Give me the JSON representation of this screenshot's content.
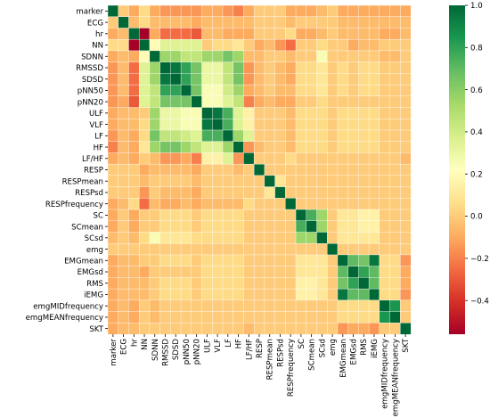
{
  "chart_data": {
    "type": "heatmap",
    "title": "",
    "xlabel": "",
    "ylabel": "",
    "variables": [
      "marker",
      "ECG",
      "hr",
      "NN",
      "SDNN",
      "RMSSD",
      "SDSD",
      "pNN50",
      "pNN20",
      "ULF",
      "VLF",
      "LF",
      "HF",
      "LF/HF",
      "RESP",
      "RESPmean",
      "RESPsd",
      "RESPfrequency",
      "SC",
      "SCmean",
      "SCsd",
      "emg",
      "EMGmean",
      "EMGsd",
      "RMS",
      "iEMG",
      "emgMIDfrequency",
      "emgMEANfrequency",
      "SKT"
    ],
    "colorbar": {
      "min": -0.56,
      "max": 1.0,
      "colormap": "RdYlGn",
      "ticks": [
        "1.0",
        "0.8",
        "0.6",
        "0.4",
        "0.2",
        "0.0",
        "−0.2",
        "−0.4"
      ]
    },
    "matrix_rows": [
      "1.00 0.00 -0.10 0.05 -0.10 -0.15 -0.15 -0.15 -0.15 -0.10 -0.10 -0.15 -0.20 -0.10 0.00 0.00 0.00 -0.10 -0.10 -0.10 -0.05 0.00 -0.10 -0.10 -0.10 -0.10 -0.10 -0.10 -0.10",
      "0.00 1.00 -0.05 0.05 -0.05 -0.05 -0.05 -0.05 -0.10 -0.05 -0.05 -0.05 -0.05 -0.05 0.00 0.00 0.00 -0.05 0.00 0.00 0.00 0.00 -0.05 -0.05 -0.05 -0.05 -0.05 -0.05 -0.05",
      "-0.10 -0.05 1.00 -0.56 -0.10 -0.25 -0.25 -0.25 -0.30 -0.05 -0.05 -0.10 -0.10 -0.10 0.00 0.00 0.00 0.05 -0.10 -0.10 -0.05 0.00 -0.05 -0.05 -0.05 -0.05 -0.10 -0.10 -0.05",
      "0.05 0.05 -0.56 1.00 0.20 0.35 0.35 0.35 0.35 0.00 0.05 0.05 0.10 0.00 -0.10 -0.05 -0.15 -0.25 0.00 0.00 0.05 0.00 0.00 -0.10 -0.05 -0.05 0.00 0.00 0.00",
      "-0.10 -0.05 -0.10 0.20 1.00 0.55 0.55 0.45 0.45 0.55 0.55 0.65 0.55 -0.05 -0.05 0.00 0.00 -0.05 0.00 0.00 0.25 0.00 0.00 0.00 0.00 0.00 -0.05 -0.05 0.00",
      "-0.15 -0.05 -0.25 0.35 0.55 1.00 0.95 0.80 0.65 0.30 0.30 0.45 0.65 -0.15 -0.05 0.00 -0.05 -0.10 0.05 0.05 0.10 0.00 0.05 0.00 0.05 0.05 0.00 0.00 0.00",
      "-0.15 -0.05 -0.25 0.35 0.55 0.95 1.00 0.80 0.65 0.30 0.30 0.45 0.65 -0.15 -0.05 0.00 -0.05 -0.10 0.05 0.05 0.10 0.00 0.05 0.00 0.05 0.05 0.00 0.00 0.00",
      "-0.15 -0.05 -0.25 0.35 0.45 0.80 0.80 1.00 0.65 0.25 0.25 0.40 0.55 -0.10 -0.05 0.00 -0.05 -0.05 0.05 0.05 0.10 0.00 0.05 0.00 0.05 0.05 0.00 0.00 0.00",
      "-0.15 -0.10 -0.30 0.35 0.45 0.65 0.65 0.65 1.00 0.25 0.25 0.35 0.45 -0.20 -0.10 -0.05 -0.10 -0.10 0.00 0.00 0.05 0.00 0.00 0.00 0.00 0.00 0.00 0.00 0.00",
      "-0.10 -0.05 -0.05 0.00 0.55 0.30 0.30 0.25 0.25 1.00 0.95 0.75 0.35 0.15 0.00 0.00 0.00 -0.05 0.05 0.05 0.05 0.00 0.05 0.05 0.05 0.05 0.00 0.00 0.00",
      "-0.10 -0.05 -0.05 0.05 0.55 0.30 0.30 0.25 0.25 0.95 1.00 0.75 0.35 0.15 0.00 0.00 0.00 -0.05 0.05 0.05 0.05 0.00 0.05 0.05 0.05 0.05 0.00 0.00 0.00",
      "-0.15 -0.05 -0.10 0.05 0.65 0.45 0.45 0.40 0.35 0.75 0.75 1.00 0.55 0.35 0.00 0.00 0.00 -0.05 0.05 0.05 0.05 0.00 0.05 0.05 0.05 0.05 0.00 0.00 0.00",
      "-0.20 -0.05 -0.10 0.10 0.55 0.65 0.65 0.55 0.45 0.35 0.35 0.55 1.00 -0.15 -0.05 0.00 0.00 -0.05 0.05 0.05 0.05 0.00 0.05 0.05 0.05 0.05 0.00 0.00 0.00",
      "-0.10 -0.05 -0.10 0.00 -0.05 -0.15 -0.15 -0.10 -0.20 0.15 0.15 0.35 -0.15 1.00 0.00 0.00 0.00 0.05 0.00 0.00 0.00 0.00 0.00 0.00 0.00 0.00 0.00 0.00 -0.05",
      "0.00 0.00 0.00 -0.10 -0.05 -0.05 -0.05 -0.05 -0.10 0.00 0.00 0.00 -0.05 0.00 1.00 0.00 0.00 0.00 0.00 0.00 0.00 0.00 0.00 0.00 0.00 0.00 0.00 0.00 0.00",
      "0.00 0.00 0.00 -0.05 0.00 0.00 0.00 0.00 -0.05 0.00 0.00 0.00 0.00 0.00 0.00 1.00 0.10 0.00 0.00 0.00 0.00 0.00 0.00 0.00 0.00 0.00 0.00 0.00 0.00",
      "0.00 0.00 0.00 -0.15 0.00 -0.05 -0.05 -0.05 -0.10 0.00 0.00 0.00 0.00 0.00 0.00 0.10 1.00 0.00 0.00 0.00 0.00 0.00 0.00 0.00 0.00 0.00 0.00 0.00 0.00",
      "-0.10 -0.05 0.05 -0.25 -0.05 -0.10 -0.10 -0.05 -0.10 -0.05 -0.05 -0.05 -0.05 0.05 0.00 0.00 0.00 1.00 0.00 0.00 0.00 0.00 0.00 0.00 0.00 0.00 0.00 0.00 0.00",
      "-0.10 0.00 -0.10 0.00 0.00 0.05 0.05 0.05 0.00 0.05 0.05 0.05 0.05 0.00 0.00 0.00 0.00 0.00 1.00 0.75 0.55 0.00 0.10 0.10 0.15 0.15 0.00 0.00 0.00",
      "-0.10 0.00 -0.10 0.00 0.00 0.05 0.05 0.05 0.00 0.05 0.05 0.05 0.05 0.00 0.00 0.00 0.00 0.00 0.75 1.00 0.55 0.00 0.10 0.10 0.15 0.15 0.00 0.00 0.00",
      "-0.05 0.00 -0.05 0.05 0.25 0.10 0.10 0.10 0.05 0.05 0.05 0.05 0.05 0.00 0.00 0.00 0.00 0.00 0.55 0.55 1.00 0.00 0.10 0.10 0.10 0.10 0.00 0.00 0.00",
      "0.00 0.00 0.00 0.00 0.00 0.00 0.00 0.00 0.00 0.00 0.00 0.00 0.00 0.00 0.00 0.00 0.00 0.00 0.00 0.00 0.00 1.00 0.00 0.00 0.00 0.00 0.00 0.00 0.00",
      "-0.10 -0.05 -0.05 0.00 0.00 0.05 0.05 0.05 0.00 0.05 0.05 0.05 0.05 0.00 0.00 0.00 0.00 0.00 0.10 0.10 0.10 0.00 1.00 0.70 0.65 0.95 0.05 0.05 -0.15",
      "-0.10 -0.05 -0.05 -0.10 0.00 0.00 0.00 0.00 0.00 0.05 0.05 0.05 0.05 0.00 0.00 0.00 0.00 0.00 0.10 0.10 0.10 0.00 0.70 1.00 0.80 0.70 0.05 0.05 -0.10",
      "-0.10 -0.05 -0.05 -0.05 0.00 0.05 0.05 0.05 0.00 0.05 0.05 0.05 0.05 0.00 0.00 0.00 0.00 0.00 0.15 0.15 0.10 0.00 0.65 0.80 1.00 0.70 0.05 0.05 -0.10",
      "-0.10 -0.05 -0.05 -0.05 0.00 0.05 0.05 0.05 0.00 0.05 0.05 0.05 0.05 0.00 0.00 0.00 0.00 0.00 0.15 0.15 0.10 0.00 0.95 0.70 0.70 1.00 0.05 0.05 -0.15",
      "-0.10 -0.05 -0.10 0.00 -0.05 0.00 0.00 0.00 0.00 0.00 0.00 0.00 0.00 0.00 0.00 0.00 0.00 0.00 0.00 0.00 0.00 0.00 0.05 0.05 0.05 0.05 1.00 0.85 0.00",
      "-0.10 -0.05 -0.10 0.00 -0.05 0.00 0.00 0.00 0.00 0.00 0.00 0.00 0.00 0.00 0.00 0.00 0.00 0.00 0.00 0.00 0.00 0.00 0.05 0.05 0.05 0.05 0.85 1.00 0.00",
      "-0.10 -0.05 -0.05 0.00 0.00 0.00 0.00 0.00 0.00 0.00 0.00 0.00 0.00 -0.05 0.00 0.00 0.00 0.00 0.00 0.00 0.00 0.00 -0.15 -0.10 -0.10 -0.15 0.00 0.00 1.00"
    ]
  }
}
